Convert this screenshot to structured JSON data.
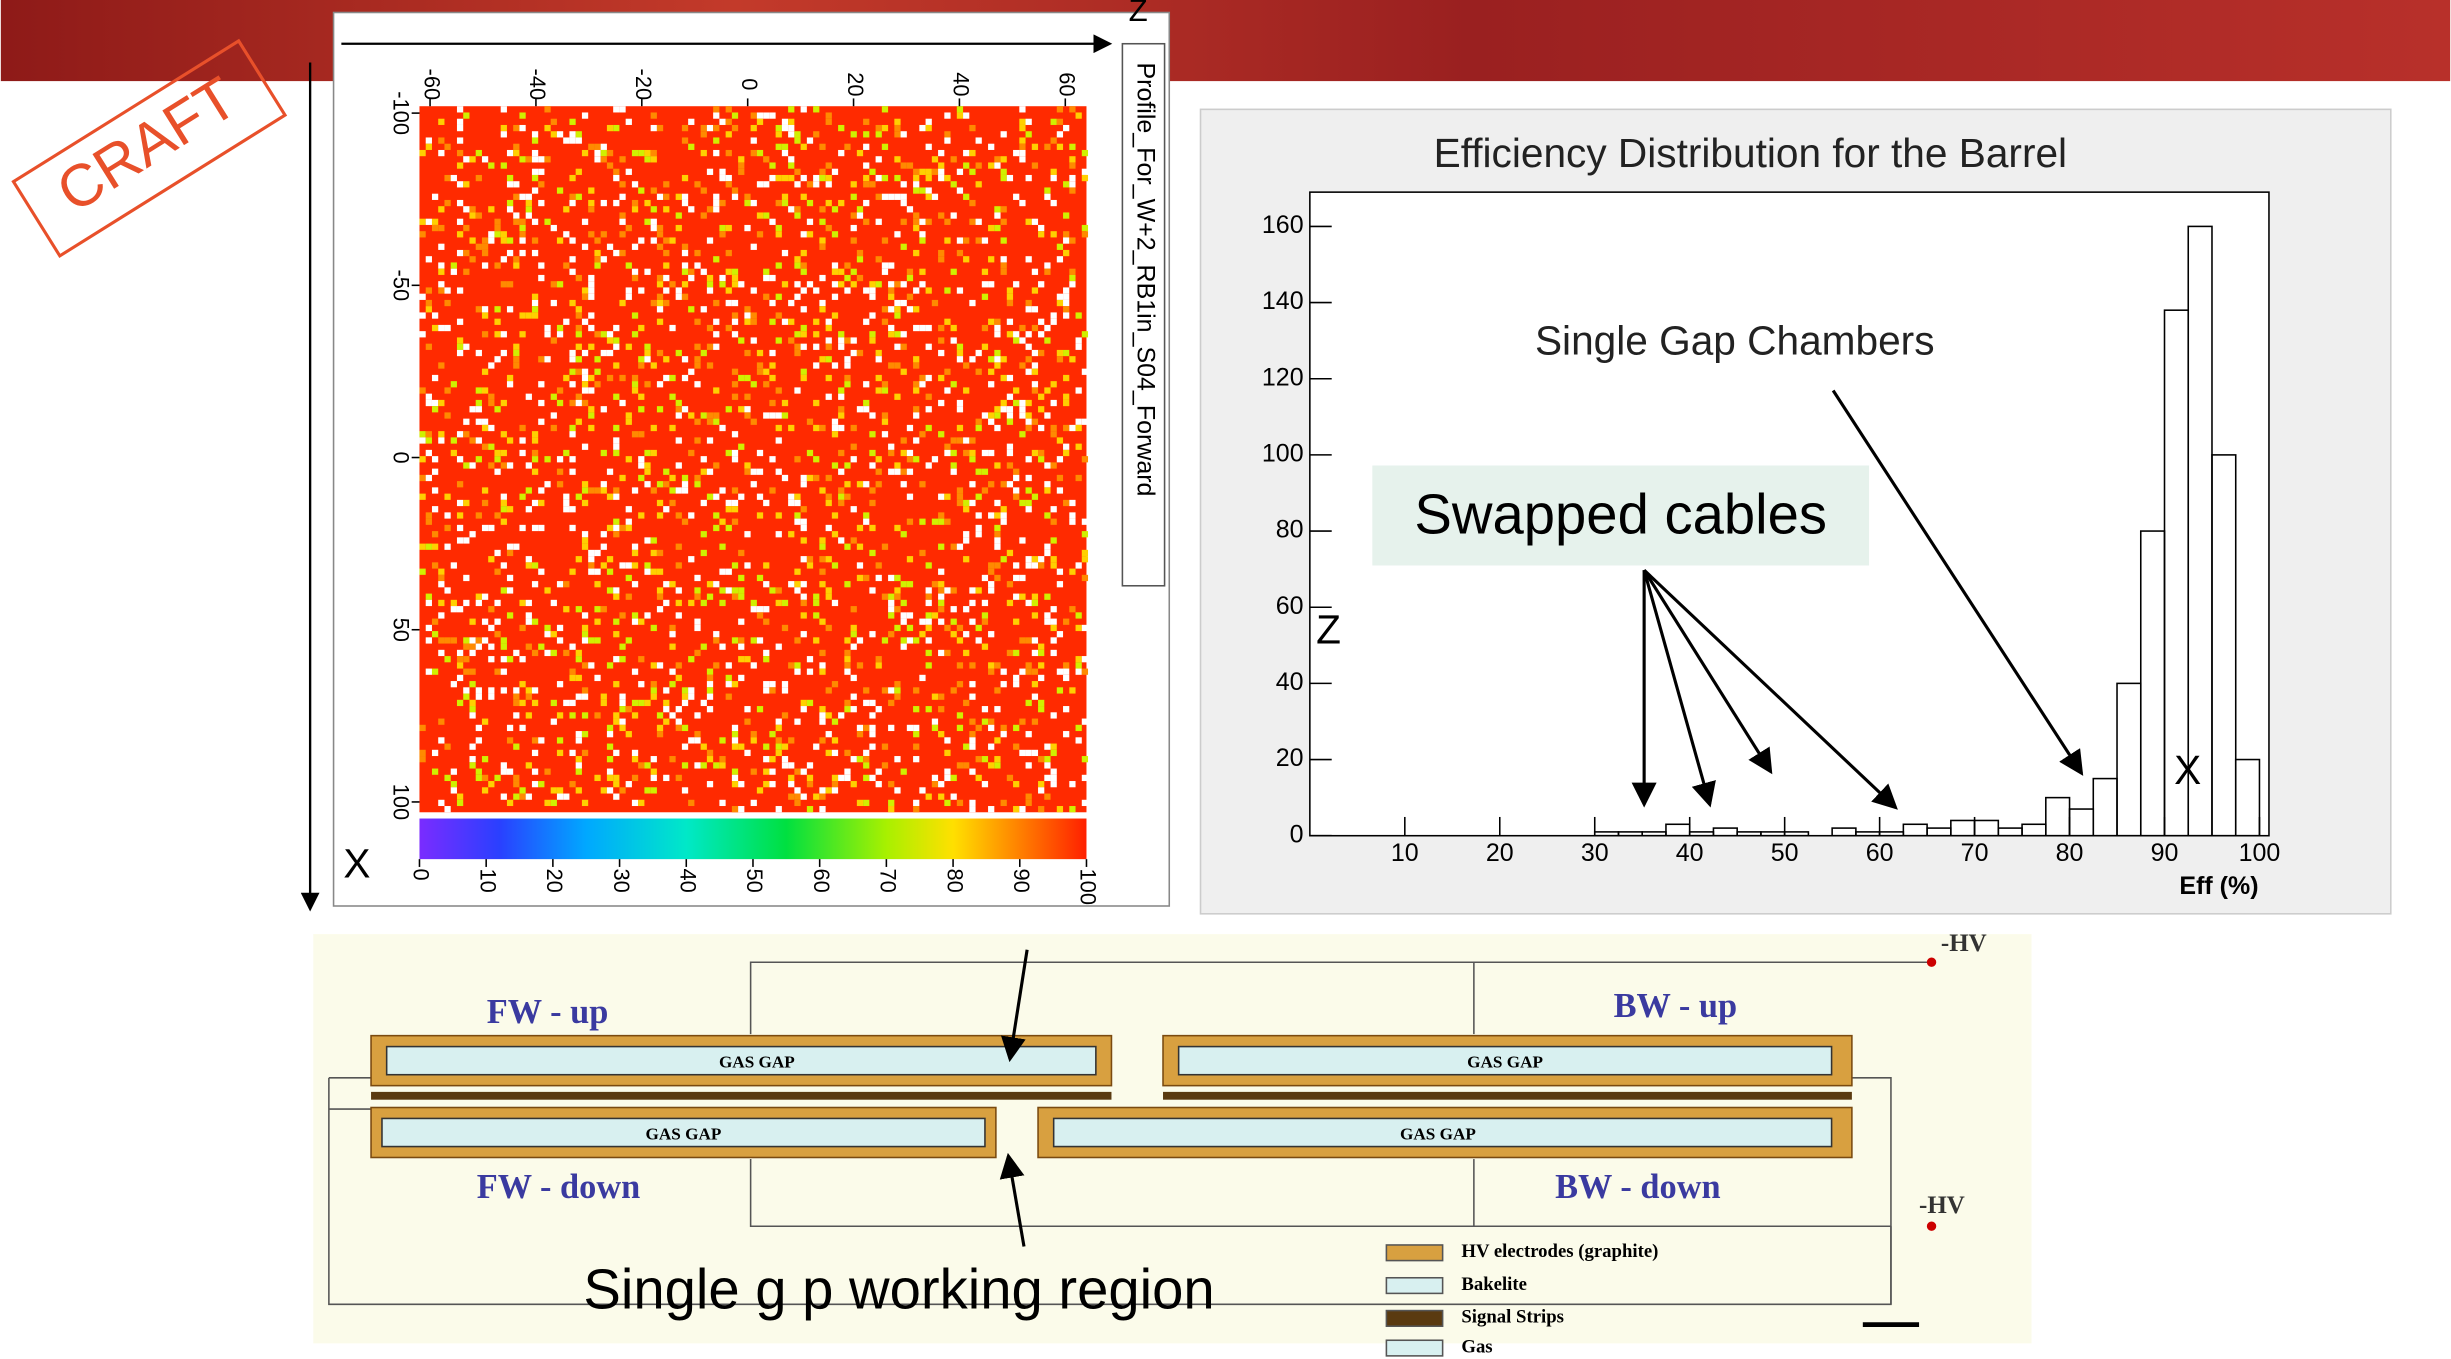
{
  "stamp": "CRAFT",
  "chart_data": [
    {
      "type": "heatmap",
      "title": "Profile_For_W+2_RB1in_S04_Forward",
      "xlabel": "Z",
      "ylabel": "X",
      "xlim": [
        -62,
        64
      ],
      "xticks": [
        -60,
        -40,
        -20,
        0,
        20,
        40,
        60
      ],
      "ylim": [
        -102,
        103
      ],
      "yticks": [
        -100,
        -50,
        0,
        50,
        100
      ],
      "zlim": [
        0,
        100
      ],
      "zticks": [
        0,
        10,
        20,
        30,
        40,
        50,
        60,
        70,
        80,
        90,
        100
      ]
    },
    {
      "type": "histogram",
      "title": "Efficiency Distribution for the Barrel",
      "xlabel": "Eff (%)",
      "color": "#000000",
      "bins": [
        0,
        2.5,
        5,
        7.5,
        10,
        12.5,
        15,
        17.5,
        20,
        22.5,
        25,
        27.5,
        30,
        32.5,
        35,
        37.5,
        40,
        42.5,
        45,
        47.5,
        50,
        52.5,
        55,
        57.5,
        60,
        62.5,
        65,
        67.5,
        70,
        72.5,
        75,
        77.5,
        80,
        82.5,
        85,
        87.5,
        90,
        92.5,
        95,
        97.5,
        100
      ],
      "values": [
        0,
        0,
        0,
        0,
        0,
        0,
        0,
        0,
        0,
        0,
        0,
        0,
        1,
        1,
        1,
        3,
        1,
        2,
        1,
        1,
        1,
        0,
        2,
        1,
        1,
        3,
        2,
        4,
        4,
        2,
        3,
        10,
        7,
        15,
        40,
        80,
        138,
        160,
        100,
        20
      ],
      "xlim": [
        0,
        101
      ],
      "xticks": [
        10,
        20,
        30,
        40,
        50,
        60,
        70,
        80,
        90,
        100
      ],
      "ylim": [
        0,
        169
      ],
      "yticks": [
        0,
        20,
        40,
        60,
        80,
        100,
        120,
        140,
        160
      ],
      "annotations": [
        "Single Gap Chambers",
        "Swapped cables",
        "Z",
        "X"
      ]
    }
  ],
  "diagram": {
    "hv_top": "-HV",
    "hv_bottom": "-HV",
    "fw_up": "FW - up",
    "bw_up": "BW - up",
    "fw_down": "FW - down",
    "bw_down": "BW - down",
    "gaps": [
      "GAS GAP",
      "GAS GAP",
      "GAS GAP",
      "GAS GAP"
    ],
    "legend": [
      "HV electrodes (graphite)",
      "Bakelite",
      "Signal Strips",
      "Gas"
    ],
    "caption": "Single g  p working region"
  }
}
